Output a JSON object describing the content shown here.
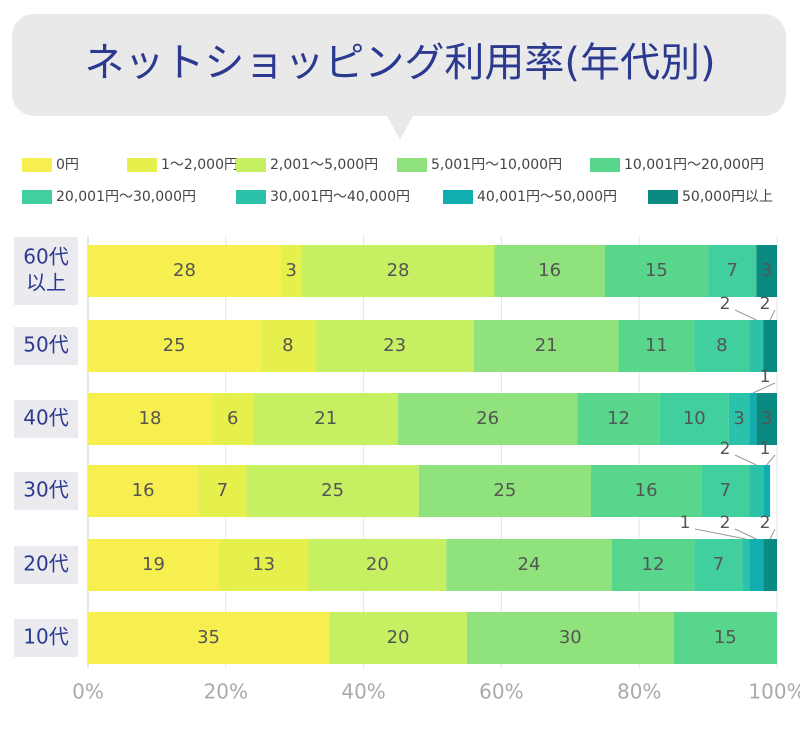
{
  "chart_data": {
    "type": "stacked-bar-horizontal",
    "title": "ネットショッピング利用率(年代別)",
    "categories": [
      [
        "60代",
        "以上"
      ],
      [
        "50代"
      ],
      [
        "40代"
      ],
      [
        "30代"
      ],
      [
        "20代"
      ],
      [
        "10代"
      ]
    ],
    "series": [
      {
        "name": "0円",
        "color": "#f7ef4f",
        "values": [
          28,
          25,
          18,
          16,
          19,
          35
        ]
      },
      {
        "name": "1〜2,000円",
        "color": "#e6f04c",
        "values": [
          3,
          8,
          6,
          7,
          13,
          null
        ]
      },
      {
        "name": "2,001〜5,000円",
        "color": "#c6ef62",
        "values": [
          28,
          23,
          21,
          25,
          20,
          20
        ]
      },
      {
        "name": "5,001円〜10,000円",
        "color": "#8fe27c",
        "values": [
          16,
          21,
          26,
          25,
          24,
          30
        ]
      },
      {
        "name": "10,001円〜20,000円",
        "color": "#58d68c",
        "values": [
          15,
          11,
          12,
          16,
          12,
          15
        ]
      },
      {
        "name": "20,001円〜30,000円",
        "color": "#40cf9d",
        "values": [
          7,
          8,
          10,
          7,
          7,
          null
        ]
      },
      {
        "name": "30,001円〜40,000円",
        "color": "#2cc2aa",
        "values": [
          null,
          2,
          3,
          2,
          1,
          null
        ]
      },
      {
        "name": "40,001円〜50,000円",
        "color": "#12adb0",
        "values": [
          null,
          null,
          1,
          1,
          2,
          null
        ]
      },
      {
        "name": "50,000円以上",
        "color": "#0a8a80",
        "values": [
          3,
          2,
          3,
          null,
          2,
          null
        ]
      }
    ],
    "xlim": [
      0,
      100
    ],
    "xticks": [
      {
        "value": 0,
        "label": "0%"
      },
      {
        "value": 20,
        "label": "20%"
      },
      {
        "value": 40,
        "label": "40%"
      },
      {
        "value": 60,
        "label": "60%"
      },
      {
        "value": 80,
        "label": "80%"
      },
      {
        "value": 100,
        "label": "100%"
      }
    ],
    "grid": true
  }
}
